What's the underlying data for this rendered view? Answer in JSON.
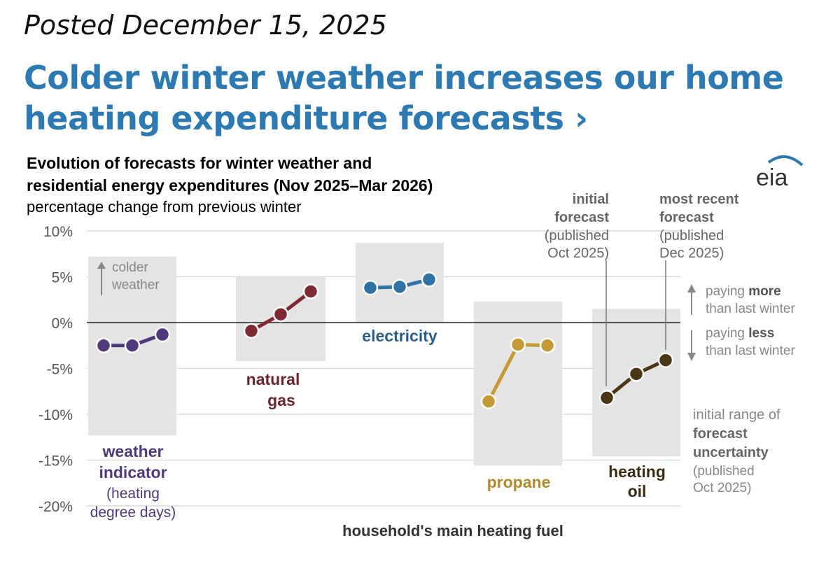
{
  "post": {
    "posted_date": "Posted December 15, 2025",
    "headline": "Colder winter weather increases our home heating expenditure forecasts ›"
  },
  "chart_data": {
    "type": "line",
    "title_line1": "Evolution of forecasts for winter weather and",
    "title_line2": "residential energy expenditures (Nov 2025–Mar 2026)",
    "subtitle": "percentage change from previous winter",
    "logo_text": "eia",
    "xlabel": "household's main heating fuel",
    "ylim": [
      -20,
      10
    ],
    "y_ticks": [
      {
        "value": 10,
        "label": "10%"
      },
      {
        "value": 5,
        "label": "5%"
      },
      {
        "value": 0,
        "label": "0%"
      },
      {
        "value": -5,
        "label": "-5%"
      },
      {
        "value": -10,
        "label": "-10%"
      },
      {
        "value": -15,
        "label": "-15%"
      },
      {
        "value": -20,
        "label": "-20%"
      }
    ],
    "series": [
      {
        "name": "weather indicator",
        "color": "#4f3a7c",
        "values": [
          -2.5,
          -2.5,
          -1.3
        ],
        "range": [
          -12.3,
          7.2
        ]
      },
      {
        "name": "natural gas",
        "color": "#7d2a33",
        "values": [
          -0.9,
          0.9,
          3.4
        ],
        "range": [
          -4.2,
          5.1
        ]
      },
      {
        "name": "electricity",
        "color": "#2e72a6",
        "values": [
          3.8,
          3.9,
          4.7
        ],
        "range": [
          0.0,
          8.7
        ]
      },
      {
        "name": "propane",
        "color": "#c49a36",
        "values": [
          -8.6,
          -2.4,
          -2.5
        ],
        "range": [
          -15.6,
          2.3
        ]
      },
      {
        "name": "heating oil",
        "color": "#4a3716",
        "values": [
          -8.2,
          -5.6,
          -4.1
        ],
        "range": [
          -14.6,
          1.5
        ]
      }
    ],
    "labels": {
      "weather_l1": "weather",
      "weather_l2": "indicator",
      "weather_l3": "(heating",
      "weather_l4": "degree days)",
      "gas_l1": "natural",
      "gas_l2": "gas",
      "electricity": "electricity",
      "propane": "propane",
      "oil_l1": "heating",
      "oil_l2": "oil"
    },
    "annotations": {
      "colder_l1": "colder",
      "colder_l2": "weather",
      "initial_l1": "initial",
      "initial_l2": "forecast",
      "initial_l3": "(published",
      "initial_l4": "Oct 2025)",
      "recent_l1": "most recent",
      "recent_l2": "forecast",
      "recent_l3": "(published",
      "recent_l4": "Dec 2025)",
      "more_pre": "paying ",
      "more_bold": "more",
      "more_l2": "than last winter",
      "less_pre": "paying ",
      "less_bold": "less",
      "less_l2": "than last winter",
      "range_l1": "initial range of",
      "range_l2": "forecast",
      "range_l3": "uncertainty",
      "range_l4": "(published",
      "range_l5": "Oct 2025)"
    }
  }
}
